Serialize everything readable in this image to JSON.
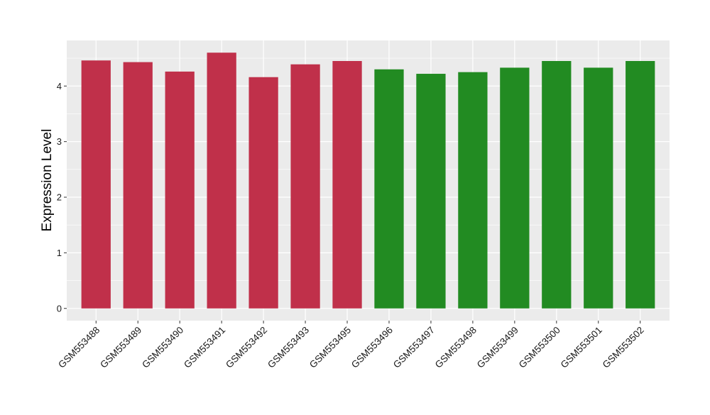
{
  "chart_data": {
    "type": "bar",
    "title": "",
    "xlabel": "",
    "ylabel": "Expression Level",
    "ylim": [
      -0.22,
      4.82
    ],
    "yticks": [
      0,
      1,
      2,
      3,
      4
    ],
    "grid": true,
    "legend": "none",
    "categories": [
      "GSM553488",
      "GSM553489",
      "GSM553490",
      "GSM553491",
      "GSM553492",
      "GSM553493",
      "GSM553495",
      "GSM553496",
      "GSM553497",
      "GSM553498",
      "GSM553499",
      "GSM553500",
      "GSM553501",
      "GSM553502"
    ],
    "values": [
      4.46,
      4.43,
      4.26,
      4.6,
      4.16,
      4.39,
      4.45,
      4.3,
      4.22,
      4.25,
      4.33,
      4.45,
      4.33,
      4.45
    ],
    "bar_colors": [
      "#c0304a",
      "#c0304a",
      "#c0304a",
      "#c0304a",
      "#c0304a",
      "#c0304a",
      "#c0304a",
      "#228b22",
      "#228b22",
      "#228b22",
      "#228b22",
      "#228b22",
      "#228b22",
      "#228b22"
    ],
    "panel_background": "#ebebeb",
    "grid_color": "#ffffff"
  }
}
